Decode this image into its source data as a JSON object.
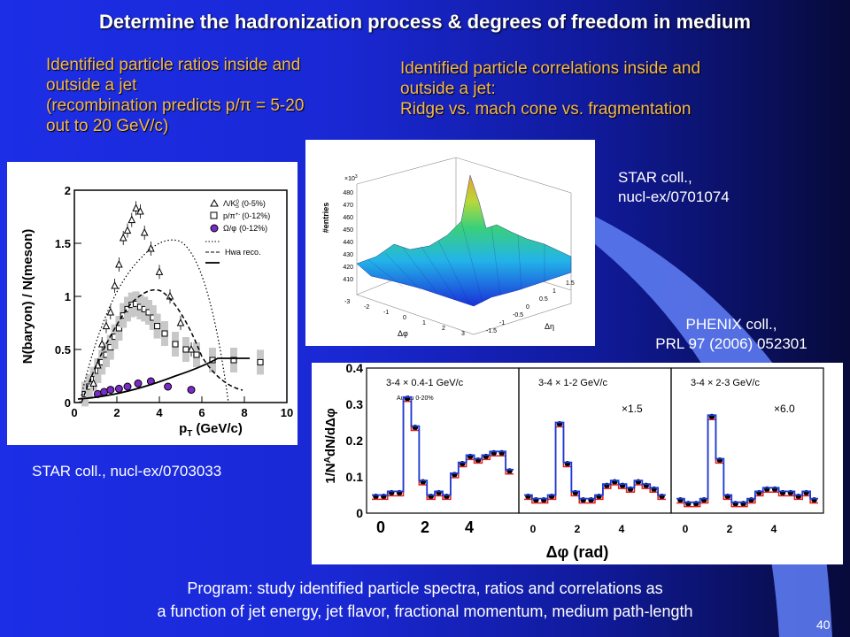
{
  "title": "Determine the hadronization process & degrees of freedom in medium",
  "left_heading": {
    "line1": "Identified particle ratios inside and",
    "line2": "outside a jet",
    "line3": "(recombination predicts p/π = 5-20",
    "line4": "out to 20 GeV/c)"
  },
  "right_heading": {
    "line1": "Identified particle correlations inside and",
    "line2": "outside a jet:",
    "line3": "Ridge vs. mach cone vs. fragmentation"
  },
  "star_ref_top": {
    "line1": "STAR coll.,",
    "line2": "nucl-ex/0701074"
  },
  "phenix_ref": {
    "line1": "PHENIX coll.,",
    "line2": "PRL 97 (2006) 052301"
  },
  "star_ref_left": "STAR coll., nucl-ex/0703033",
  "bottom_text": {
    "line1": "Program: study identified particle spectra, ratios and correlations as",
    "line2": "a function of jet energy, jet flavor, fractional momentum, medium path-length"
  },
  "page_number": "40",
  "ratio_plot": {
    "ylabel": "N(baryon) / N(meson)",
    "xlabel": "p",
    "xlabel_sub": "T",
    "xlabel_unit": "(GeV/c)",
    "x_ticks": [
      "0",
      "2",
      "4",
      "6",
      "8",
      "10"
    ],
    "y_ticks": [
      "0",
      "0.5",
      "1",
      "1.5",
      "2"
    ],
    "legend": [
      {
        "label": "Λ/K",
        "sup": "0",
        "sub": "S",
        "range": "(0-5%)",
        "marker": "triangle"
      },
      {
        "label": "p/π",
        "sup": "+-",
        "sub": "",
        "range": "(0-12%)",
        "marker": "square"
      },
      {
        "label": "Ω/φ",
        "sup": "",
        "sub": "",
        "range": "(0-12%)",
        "marker": "circle"
      },
      {
        "label": "Hwa reco.",
        "sup": "",
        "sub": "",
        "range": "",
        "marker": "dashed"
      }
    ]
  },
  "surface_plot": {
    "zlabel": "#entries",
    "scale": "×10",
    "scale_exp": "3",
    "z_ticks": [
      "410",
      "420",
      "430",
      "440",
      "450",
      "460",
      "470",
      "480"
    ],
    "phi_ticks": [
      "-3",
      "-2",
      "-1",
      "0",
      "1",
      "2",
      "3"
    ],
    "phi_label": "Δφ",
    "eta_ticks": [
      "-1.5",
      "-1",
      "-0.5",
      "0",
      "0.5",
      "1",
      "1.5"
    ],
    "eta_label": "Δη"
  },
  "corr_plot": {
    "ylabel": "1/N",
    "ylabel_sup": "A",
    "ylabel_rest": "dN/dΔφ",
    "y_ticks": [
      "0",
      "0.1",
      "0.2",
      "0.3",
      "0.4"
    ],
    "xlabel": "Δφ (rad)",
    "panels": [
      {
        "label": "3-4 × 0.4-1 GeV/c",
        "scale": "",
        "note": "Au-Au 0-20%",
        "ticks": [
          "0",
          "2",
          "4"
        ]
      },
      {
        "label": "3-4 × 1-2 GeV/c",
        "scale": "×1.5",
        "note": "",
        "ticks": [
          "0",
          "2",
          "4"
        ]
      },
      {
        "label": "3-4 × 2-3 GeV/c",
        "scale": "×6.0",
        "note": "",
        "ticks": [
          "0",
          "2",
          "4"
        ]
      }
    ]
  },
  "chart_data": [
    {
      "type": "scatter",
      "ylabel": "N(baryon) / N(meson)",
      "xlabel": "pT (GeV/c)",
      "xlim": [
        0,
        10
      ],
      "ylim": [
        0,
        2
      ],
      "series": [
        {
          "name": "Λ/K0S (0-5%)",
          "x": [
            0.9,
            1.1,
            1.3,
            1.5,
            1.7,
            1.9,
            2.1,
            2.3,
            2.5,
            2.7,
            2.9,
            3.1,
            3.3,
            3.6,
            4.0,
            4.5,
            5.0,
            5.5
          ],
          "y": [
            0.18,
            0.35,
            0.55,
            0.72,
            0.85,
            1.1,
            1.3,
            1.55,
            1.62,
            1.72,
            1.83,
            1.8,
            1.6,
            1.45,
            1.23,
            1.0,
            0.75,
            0.5
          ]
        },
        {
          "name": "p/π+- (0-12%)",
          "x": [
            0.5,
            0.7,
            0.9,
            1.1,
            1.3,
            1.5,
            1.7,
            1.9,
            2.1,
            2.3,
            2.5,
            2.7,
            2.9,
            3.1,
            3.3,
            3.5,
            3.7,
            3.9,
            4.25,
            4.75,
            5.25,
            5.75,
            6.5,
            7.5,
            8.75
          ],
          "y": [
            0.08,
            0.15,
            0.22,
            0.3,
            0.38,
            0.45,
            0.52,
            0.62,
            0.7,
            0.82,
            0.88,
            0.92,
            0.93,
            0.9,
            0.88,
            0.85,
            0.8,
            0.72,
            0.65,
            0.55,
            0.5,
            0.45,
            0.4,
            0.4,
            0.38
          ]
        },
        {
          "name": "Ω/φ (0-12%)",
          "x": [
            1.1,
            1.4,
            1.7,
            2.1,
            2.5,
            3.0,
            3.6,
            4.4,
            5.5
          ],
          "y": [
            0.08,
            0.1,
            0.12,
            0.13,
            0.15,
            0.18,
            0.2,
            0.15,
            0.12
          ]
        }
      ]
    },
    {
      "type": "line",
      "ylabel": "1/NA dN/dΔφ",
      "xlabel": "Δφ (rad)",
      "ylim": [
        0,
        0.4
      ]
    }
  ]
}
